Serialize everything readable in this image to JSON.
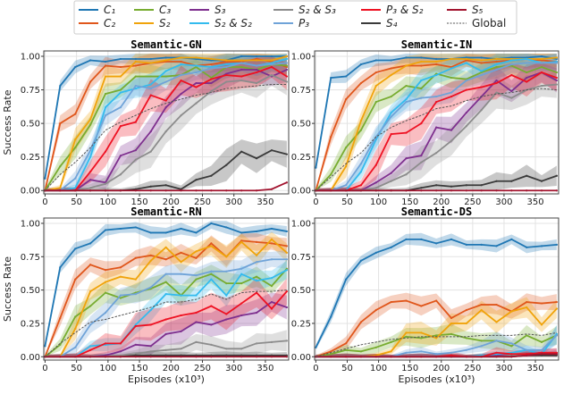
{
  "chart_data": {
    "type": "line",
    "xlabel": "Episodes (x10³)",
    "ylabel": "Success Rate",
    "xlim": [
      0,
      387
    ],
    "ylim": [
      0,
      1.0
    ],
    "xticks": [
      "0",
      "50",
      "100",
      "150",
      "200",
      "250",
      "300",
      "350"
    ],
    "yticks": [
      "0.00",
      "0.25",
      "0.50",
      "0.75",
      "1.00"
    ],
    "grid": true,
    "legend_placement": "top-center",
    "x": [
      0,
      24,
      48,
      72,
      96,
      120,
      144,
      168,
      192,
      216,
      240,
      264,
      288,
      312,
      336,
      360,
      384
    ],
    "series_meta": [
      {
        "key": "C1",
        "name": "C₁",
        "color": "#1f77b4",
        "spread": 0.04
      },
      {
        "key": "C2",
        "name": "C₂",
        "color": "#e0561b",
        "spread": 0.06
      },
      {
        "key": "C3",
        "name": "C₃",
        "color": "#77ac30",
        "spread": 0.07
      },
      {
        "key": "S2",
        "name": "S₂",
        "color": "#f0a30a",
        "spread": 0.07
      },
      {
        "key": "S3",
        "name": "S₃",
        "color": "#7e2f8e",
        "spread": 0.09
      },
      {
        "key": "S2S2",
        "name": "S₂ & S₂",
        "color": "#33bbee",
        "spread": 0.07
      },
      {
        "key": "S2S3",
        "name": "S₂ & S₃",
        "color": "#8c8c8c",
        "spread": 0.1
      },
      {
        "key": "P3",
        "name": "P₃",
        "color": "#6fa3d8",
        "spread": 0.07
      },
      {
        "key": "S4",
        "name": "S₄",
        "color": "#3a3a3a",
        "spread": 0.1
      },
      {
        "key": "P3S2",
        "name": "P₃ & S₂",
        "color": "#ee1122",
        "spread": 0.1
      },
      {
        "key": "S5",
        "name": "S₅",
        "color": "#a2142f",
        "spread": 0.01
      },
      {
        "key": "Global",
        "name": "Global",
        "color": "#555555",
        "spread": 0,
        "dashed": true
      }
    ],
    "legend_order": [
      "C1",
      "C2",
      "C3",
      "S2",
      "S3",
      "S2S2",
      "S2S3",
      "P3",
      "P3S2",
      "S4",
      "S5",
      "Global"
    ],
    "panels": [
      {
        "title": "Semantic-GN",
        "series": {
          "C1": [
            0.09,
            0.78,
            0.92,
            0.97,
            0.96,
            0.98,
            0.98,
            0.98,
            0.99,
            0.99,
            0.98,
            0.97,
            0.97,
            1.0,
            1.0,
            1.0,
            1.0
          ],
          "C2": [
            0,
            0.5,
            0.57,
            0.81,
            0.93,
            0.92,
            0.93,
            0.95,
            0.96,
            0.96,
            0.93,
            0.94,
            0.96,
            0.96,
            0.98,
            0.96,
            0.92
          ],
          "C3": [
            0,
            0.18,
            0.32,
            0.49,
            0.72,
            0.75,
            0.85,
            0.85,
            0.85,
            0.86,
            0.92,
            0.84,
            0.92,
            0.92,
            0.9,
            0.94,
            0.93
          ],
          "S2": [
            0,
            0.02,
            0.38,
            0.53,
            0.85,
            0.85,
            0.96,
            0.95,
            0.97,
            0.99,
            0.99,
            0.98,
            0.97,
            0.97,
            0.97,
            0.97,
            1.0
          ],
          "S3": [
            0,
            0,
            0,
            0.08,
            0.06,
            0.26,
            0.3,
            0.44,
            0.62,
            0.72,
            0.8,
            0.8,
            0.87,
            0.9,
            0.9,
            0.85,
            0.9
          ],
          "S2S2": [
            0,
            0,
            0.02,
            0.25,
            0.62,
            0.73,
            0.76,
            0.79,
            0.89,
            0.94,
            0.93,
            0.92,
            0.94,
            0.95,
            0.93,
            0.95,
            0.98
          ],
          "S2S3": [
            0,
            0,
            0,
            0.02,
            0.05,
            0.12,
            0.23,
            0.29,
            0.44,
            0.56,
            0.65,
            0.74,
            0.81,
            0.82,
            0.8,
            0.86,
            0.81
          ],
          "P3": [
            0,
            0,
            0.09,
            0.3,
            0.56,
            0.62,
            0.78,
            0.76,
            0.81,
            0.86,
            0.88,
            0.91,
            0.92,
            0.95,
            0.93,
            0.94,
            0.95
          ],
          "S4": [
            0,
            0,
            0,
            0,
            0,
            0,
            0.01,
            0.03,
            0.04,
            0.01,
            0.08,
            0.11,
            0.19,
            0.29,
            0.24,
            0.3,
            0.27
          ],
          "P3S2": [
            0,
            0,
            0,
            0.14,
            0.29,
            0.48,
            0.51,
            0.71,
            0.67,
            0.82,
            0.77,
            0.83,
            0.86,
            0.85,
            0.88,
            0.92,
            0.85
          ],
          "S5": [
            0,
            0,
            0,
            0,
            0,
            0,
            0,
            0,
            0,
            0,
            0,
            0,
            0,
            0,
            0,
            0.01,
            0.06
          ],
          "Global": [
            0,
            0.12,
            0.21,
            0.32,
            0.45,
            0.51,
            0.56,
            0.61,
            0.65,
            0.68,
            0.71,
            0.73,
            0.76,
            0.77,
            0.78,
            0.79,
            0.79
          ]
        }
      },
      {
        "title": "Semantic-IN",
        "series": {
          "C1": [
            0.17,
            0.84,
            0.85,
            0.94,
            0.97,
            0.97,
            0.99,
            0.99,
            0.98,
            0.98,
            0.99,
            0.99,
            0.98,
            0.99,
            0.99,
            1.0,
            0.98
          ],
          "C2": [
            0,
            0.4,
            0.68,
            0.8,
            0.88,
            0.91,
            0.93,
            0.93,
            0.94,
            0.92,
            0.97,
            0.95,
            0.96,
            0.97,
            0.98,
            0.97,
            0.96
          ],
          "C3": [
            0,
            0.12,
            0.32,
            0.45,
            0.66,
            0.7,
            0.78,
            0.76,
            0.87,
            0.84,
            0.83,
            0.88,
            0.92,
            0.93,
            0.88,
            0.92,
            0.88
          ],
          "S2": [
            0,
            0,
            0.18,
            0.52,
            0.78,
            0.86,
            0.93,
            0.96,
            0.96,
            0.98,
            0.98,
            0.97,
            0.98,
            0.98,
            0.98,
            0.98,
            0.99
          ],
          "S3": [
            0,
            0,
            0,
            0,
            0.06,
            0.13,
            0.24,
            0.26,
            0.47,
            0.45,
            0.58,
            0.7,
            0.82,
            0.74,
            0.84,
            0.88,
            0.82
          ],
          "S2S2": [
            0,
            0,
            0,
            0.14,
            0.38,
            0.58,
            0.68,
            0.82,
            0.86,
            0.91,
            0.95,
            0.89,
            0.94,
            0.97,
            0.98,
            0.95,
            0.96
          ],
          "S2S3": [
            0,
            0,
            0,
            0,
            0.02,
            0.07,
            0.12,
            0.21,
            0.28,
            0.37,
            0.48,
            0.6,
            0.73,
            0.69,
            0.75,
            0.78,
            0.79
          ],
          "P3": [
            0,
            0,
            0.04,
            0.2,
            0.4,
            0.55,
            0.66,
            0.69,
            0.7,
            0.73,
            0.82,
            0.86,
            0.9,
            0.94,
            0.95,
            0.95,
            0.95
          ],
          "S4": [
            0,
            0,
            0,
            0,
            0,
            0,
            0,
            0.02,
            0.04,
            0.03,
            0.04,
            0.04,
            0.07,
            0.07,
            0.11,
            0.07,
            0.11
          ],
          "P3S2": [
            0,
            0,
            0,
            0.04,
            0.19,
            0.42,
            0.43,
            0.5,
            0.66,
            0.7,
            0.75,
            0.77,
            0.8,
            0.86,
            0.81,
            0.88,
            0.84
          ],
          "S5": [
            0,
            0,
            0,
            0,
            0,
            0,
            0,
            0,
            0,
            0,
            0,
            0,
            0,
            0,
            0,
            0,
            0
          ],
          "Global": [
            0,
            0.1,
            0.2,
            0.28,
            0.4,
            0.47,
            0.52,
            0.56,
            0.61,
            0.63,
            0.67,
            0.7,
            0.72,
            0.73,
            0.75,
            0.76,
            0.75
          ]
        }
      },
      {
        "title": "Semantic-RN",
        "series": {
          "C1": [
            0.08,
            0.67,
            0.81,
            0.85,
            0.95,
            0.96,
            0.97,
            0.93,
            0.93,
            0.96,
            0.93,
            1.0,
            0.97,
            0.93,
            0.94,
            0.96,
            0.94
          ],
          "C2": [
            0,
            0.29,
            0.58,
            0.69,
            0.65,
            0.67,
            0.74,
            0.76,
            0.73,
            0.78,
            0.74,
            0.85,
            0.75,
            0.87,
            0.86,
            0.85,
            0.83
          ],
          "C3": [
            0,
            0.09,
            0.3,
            0.38,
            0.48,
            0.44,
            0.48,
            0.51,
            0.56,
            0.46,
            0.58,
            0.62,
            0.55,
            0.55,
            0.6,
            0.53,
            0.66
          ],
          "S2": [
            0,
            0,
            0.21,
            0.49,
            0.56,
            0.6,
            0.58,
            0.72,
            0.82,
            0.71,
            0.79,
            0.83,
            0.75,
            0.86,
            0.76,
            0.88,
            0.78
          ],
          "S3": [
            0,
            0,
            0,
            0,
            0.01,
            0.04,
            0.09,
            0.08,
            0.17,
            0.19,
            0.26,
            0.24,
            0.28,
            0.31,
            0.33,
            0.41,
            0.37
          ],
          "S2S2": [
            0,
            0,
            0,
            0.08,
            0.09,
            0.1,
            0.24,
            0.35,
            0.47,
            0.46,
            0.46,
            0.58,
            0.46,
            0.62,
            0.57,
            0.59,
            0.65
          ],
          "S2S3": [
            0,
            0,
            0,
            0,
            0,
            0.01,
            0.02,
            0.04,
            0.05,
            0.06,
            0.11,
            0.09,
            0.06,
            0.06,
            0.1,
            0.11,
            0.12
          ],
          "P3": [
            0,
            0,
            0.07,
            0.24,
            0.33,
            0.46,
            0.47,
            0.52,
            0.62,
            0.62,
            0.61,
            0.64,
            0.64,
            0.66,
            0.71,
            0.73,
            0.73
          ],
          "S4": [
            0,
            0,
            0,
            0,
            0,
            0,
            0.01,
            0.01,
            0.01,
            0.01,
            0.01,
            0.01,
            0.01,
            0.01,
            0.01,
            0.01,
            0.01
          ],
          "P3S2": [
            0,
            0,
            0,
            0.05,
            0.1,
            0.1,
            0.23,
            0.24,
            0.28,
            0.31,
            0.33,
            0.38,
            0.32,
            0.4,
            0.48,
            0.36,
            0.49
          ],
          "S5": [
            0,
            0,
            0,
            0,
            0,
            0,
            0,
            0,
            0,
            0,
            0,
            0,
            0,
            0,
            0,
            0,
            0
          ],
          "Global": [
            0,
            0.1,
            0.18,
            0.26,
            0.28,
            0.31,
            0.34,
            0.37,
            0.41,
            0.41,
            0.43,
            0.47,
            0.43,
            0.48,
            0.49,
            0.49,
            0.5
          ]
        }
      },
      {
        "title": "Semantic-DS",
        "series": {
          "C1": [
            0.07,
            0.3,
            0.58,
            0.72,
            0.78,
            0.82,
            0.88,
            0.88,
            0.85,
            0.88,
            0.84,
            0.84,
            0.83,
            0.88,
            0.82,
            0.83,
            0.84
          ],
          "C2": [
            0,
            0.04,
            0.1,
            0.26,
            0.35,
            0.41,
            0.42,
            0.38,
            0.42,
            0.29,
            0.35,
            0.39,
            0.39,
            0.34,
            0.41,
            0.4,
            0.41
          ],
          "C3": [
            0,
            0.02,
            0.05,
            0.04,
            0.07,
            0.11,
            0.15,
            0.14,
            0.16,
            0.17,
            0.14,
            0.12,
            0.12,
            0.08,
            0.16,
            0.11,
            0.16
          ],
          "S2": [
            0,
            0,
            0,
            0,
            0.01,
            0.04,
            0.18,
            0.18,
            0.14,
            0.25,
            0.25,
            0.35,
            0.26,
            0.34,
            0.37,
            0.24,
            0.36
          ],
          "S3": [
            0,
            0,
            0,
            0,
            0,
            0,
            0,
            0,
            0,
            0,
            0,
            0,
            0.01,
            0.01,
            0.02,
            0.03,
            0.03
          ],
          "S2S2": [
            0,
            0,
            0,
            0,
            0,
            0,
            0,
            0,
            0,
            0,
            0,
            0.01,
            0.02,
            0.03,
            0.05,
            0.02,
            0.17
          ],
          "S2S3": [
            0,
            0,
            0,
            0,
            0,
            0,
            0,
            0,
            0,
            0,
            0,
            0,
            0,
            0.01,
            0.01,
            0.01,
            0.02
          ],
          "P3": [
            0,
            0,
            0,
            0,
            0,
            0,
            0.03,
            0.04,
            0.02,
            0.03,
            0.05,
            0.08,
            0.12,
            0.1,
            0.05,
            0.05,
            0.16
          ],
          "S4": [
            0,
            0,
            0,
            0,
            0,
            0,
            0,
            0,
            0,
            0,
            0,
            0,
            0,
            0,
            0.01,
            0.01,
            0.01
          ],
          "P3S2": [
            0,
            0,
            0,
            0,
            0,
            0,
            0,
            0,
            0,
            0.01,
            0,
            0,
            0.03,
            0.02,
            0.02,
            0.03,
            0.03
          ],
          "S5": [
            0,
            0,
            0,
            0,
            0,
            0,
            0,
            0,
            0,
            0,
            0,
            0,
            0,
            0,
            0.01,
            0.02,
            0.02
          ],
          "Global": [
            0,
            0.03,
            0.06,
            0.09,
            0.11,
            0.13,
            0.14,
            0.15,
            0.15,
            0.15,
            0.15,
            0.16,
            0.16,
            0.16,
            0.17,
            0.16,
            0.18
          ]
        }
      }
    ]
  }
}
